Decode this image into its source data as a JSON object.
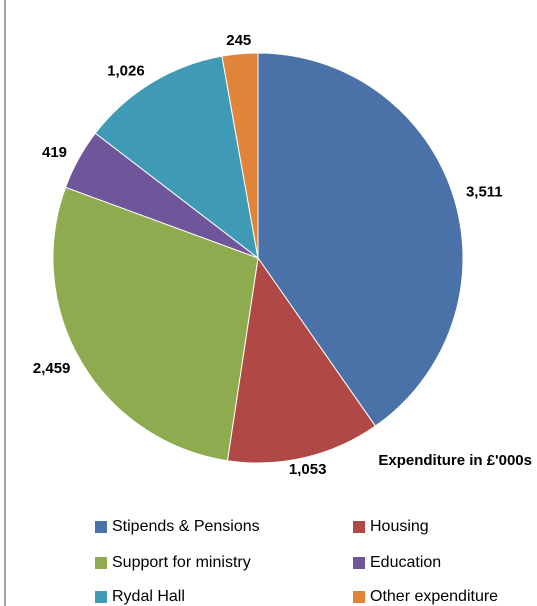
{
  "chart_data": {
    "type": "pie",
    "categories": [
      "Stipends & Pensions",
      "Housing",
      "Support for ministry",
      "Education",
      "Rydal Hall",
      "Other expenditure"
    ],
    "values": [
      3511,
      1053,
      2459,
      419,
      1026,
      245
    ],
    "value_labels": [
      "3,511",
      "1,053",
      "2,459",
      "419",
      "1,026",
      "245"
    ],
    "colors": [
      "#4a72a8",
      "#b04845",
      "#8eab4f",
      "#6f569a",
      "#3f9bb5",
      "#e0843a"
    ],
    "annotation": "Expenditure in £'000s",
    "legend": "bottom"
  }
}
